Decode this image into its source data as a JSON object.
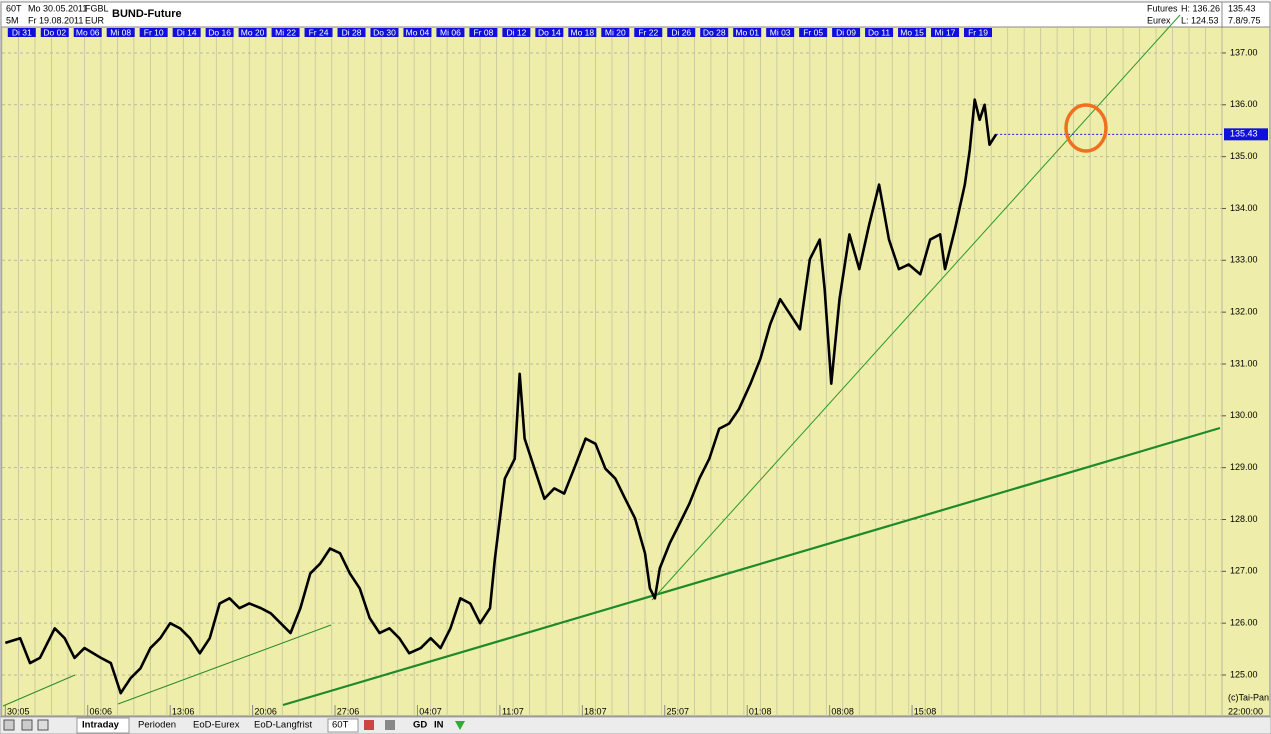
{
  "header": {
    "period": "60T",
    "from": "Mo 30.05.2011",
    "symbol": "FGBL",
    "range": "5M",
    "to": "Fr 19.08.2011",
    "currency": "EUR",
    "title": "BUND-Future",
    "market": "Futures",
    "high": "H: 136.26",
    "last": "135.43",
    "exchange": "Eurex",
    "low": "L: 124.53",
    "ratio": "7.8/9.75"
  },
  "footer": {
    "copyright": "(c)Tai-Pan",
    "time": "22:00:00",
    "tabs": [
      "Intraday",
      "Perioden",
      "EoD-Eurex",
      "EoD-Langfrist"
    ],
    "period": "60T",
    "buttons": [
      "GD",
      "IN"
    ]
  },
  "chart_data": {
    "type": "line",
    "color": "#000000",
    "xlim": [
      -0.2,
      73.8
    ],
    "ylim": [
      124.46,
      137.25
    ],
    "yticks": [
      {
        "value": 125,
        "label": "125.00"
      },
      {
        "value": 126,
        "label": "126.00"
      },
      {
        "value": 127,
        "label": "127.00"
      },
      {
        "value": 128,
        "label": "128.00"
      },
      {
        "value": 129,
        "label": "129.00"
      },
      {
        "value": 130,
        "label": "130.00"
      },
      {
        "value": 131,
        "label": "131.00"
      },
      {
        "value": 132,
        "label": "132.00"
      },
      {
        "value": 133,
        "label": "133.00"
      },
      {
        "value": 134,
        "label": "134.00"
      },
      {
        "value": 135,
        "label": "135.00"
      },
      {
        "value": 136,
        "label": "136.00"
      },
      {
        "value": 137,
        "label": "137.00"
      }
    ],
    "xticks": [
      {
        "value": 0,
        "label": "30:05"
      },
      {
        "value": 5,
        "label": "06:06"
      },
      {
        "value": 10,
        "label": "13:06"
      },
      {
        "value": 15,
        "label": "20:06"
      },
      {
        "value": 20,
        "label": "27:06"
      },
      {
        "value": 25,
        "label": "04:07"
      },
      {
        "value": 30,
        "label": "11:07"
      },
      {
        "value": 35,
        "label": "18:07"
      },
      {
        "value": 40,
        "label": "25:07"
      },
      {
        "value": 45,
        "label": "01:08"
      },
      {
        "value": 50,
        "label": "08:08"
      },
      {
        "value": 55,
        "label": "15:08"
      }
    ],
    "day_labels": [
      {
        "value": 1,
        "label": "Di 31"
      },
      {
        "value": 3,
        "label": "Do 02"
      },
      {
        "value": 5,
        "label": "Mo 06"
      },
      {
        "value": 7,
        "label": "Mi 08"
      },
      {
        "value": 9,
        "label": "Fr 10"
      },
      {
        "value": 11,
        "label": "Di 14"
      },
      {
        "value": 13,
        "label": "Do 16"
      },
      {
        "value": 15,
        "label": "Mo 20"
      },
      {
        "value": 17,
        "label": "Mi 22"
      },
      {
        "value": 19,
        "label": "Fr 24"
      },
      {
        "value": 21,
        "label": "Di 28"
      },
      {
        "value": 23,
        "label": "Do 30"
      },
      {
        "value": 25,
        "label": "Mo 04"
      },
      {
        "value": 27,
        "label": "Mi 06"
      },
      {
        "value": 29,
        "label": "Fr 08"
      },
      {
        "value": 31,
        "label": "Di 12"
      },
      {
        "value": 33,
        "label": "Do 14"
      },
      {
        "value": 35,
        "label": "Mo 18"
      },
      {
        "value": 37,
        "label": "Mi 20"
      },
      {
        "value": 39,
        "label": "Fr 22"
      },
      {
        "value": 41,
        "label": "Di 26"
      },
      {
        "value": 43,
        "label": "Do 28"
      },
      {
        "value": 45,
        "label": "Mo 01"
      },
      {
        "value": 47,
        "label": "Mi 03"
      },
      {
        "value": 49,
        "label": "Fr 05"
      },
      {
        "value": 51,
        "label": "Di 09"
      },
      {
        "value": 53,
        "label": "Do 11"
      },
      {
        "value": 55,
        "label": "Mo 15"
      },
      {
        "value": 57,
        "label": "Mi 17"
      },
      {
        "value": 59,
        "label": "Fr 19"
      }
    ],
    "last_price": {
      "value": 135.43,
      "label": "135.43"
    },
    "x": [
      0,
      0.9,
      1.5,
      2.1,
      3.0,
      3.6,
      4.2,
      4.8,
      5.8,
      6.4,
      7.0,
      7.6,
      8.2,
      8.8,
      9.4,
      10.0,
      10.6,
      11.2,
      11.8,
      12.4,
      13.0,
      13.6,
      14.2,
      14.8,
      15.5,
      16.1,
      16.7,
      17.3,
      17.9,
      18.5,
      19.1,
      19.7,
      20.3,
      20.9,
      21.5,
      22.1,
      22.7,
      23.3,
      23.9,
      24.5,
      25.2,
      25.8,
      26.4,
      27.0,
      27.6,
      28.2,
      28.8,
      29.4,
      29.7,
      30.3,
      30.9,
      31.2,
      31.5,
      32.1,
      32.7,
      33.3,
      33.9,
      34.5,
      35.2,
      35.8,
      36.4,
      37.0,
      37.6,
      38.2,
      38.8,
      39.1,
      39.4,
      39.7,
      40.3,
      40.9,
      41.5,
      42.1,
      42.7,
      43.3,
      43.9,
      44.5,
      45.2,
      45.8,
      46.4,
      47.0,
      47.6,
      48.2,
      48.8,
      49.4,
      49.7,
      50.1,
      50.6,
      51.2,
      51.8,
      52.4,
      53.0,
      53.6,
      54.2,
      54.8,
      55.5,
      56.1,
      56.7,
      57.0,
      57.6,
      58.2,
      58.5,
      58.8,
      59.1,
      59.4,
      59.7,
      60.1
    ],
    "values": [
      125.62,
      125.71,
      125.23,
      125.33,
      125.9,
      125.71,
      125.33,
      125.52,
      125.33,
      125.23,
      124.65,
      124.94,
      125.13,
      125.52,
      125.71,
      126.0,
      125.9,
      125.71,
      125.42,
      125.71,
      126.38,
      126.48,
      126.29,
      126.38,
      126.29,
      126.19,
      126.0,
      125.81,
      126.29,
      126.96,
      127.15,
      127.44,
      127.35,
      126.96,
      126.67,
      126.1,
      125.81,
      125.9,
      125.71,
      125.42,
      125.52,
      125.71,
      125.52,
      125.9,
      126.48,
      126.38,
      126.0,
      126.29,
      127.25,
      128.79,
      129.17,
      130.81,
      129.56,
      128.98,
      128.4,
      128.6,
      128.5,
      128.98,
      129.56,
      129.46,
      128.98,
      128.79,
      128.4,
      128.02,
      127.35,
      126.67,
      126.48,
      127.06,
      127.54,
      127.92,
      128.31,
      128.79,
      129.17,
      129.75,
      129.85,
      130.13,
      130.62,
      131.1,
      131.77,
      132.25,
      131.96,
      131.67,
      133.02,
      133.4,
      132.44,
      130.62,
      132.25,
      133.5,
      132.83,
      133.69,
      134.46,
      133.4,
      132.83,
      132.92,
      132.73,
      133.4,
      133.5,
      132.83,
      133.6,
      134.46,
      135.13,
      136.1,
      135.71,
      136.0,
      135.23,
      135.43
    ]
  }
}
